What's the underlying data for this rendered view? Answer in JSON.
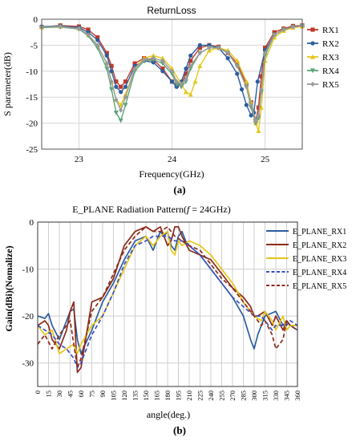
{
  "chart_data": [
    {
      "type": "line",
      "title": "ReturnLoss",
      "xlabel": "Frequency(GHz)",
      "ylabel": "S parameter(dB)",
      "xlim": [
        22.6,
        25.4
      ],
      "ylim": [
        -25,
        0
      ],
      "xticks": [
        23,
        24,
        25
      ],
      "yticks": [
        0,
        -5,
        -10,
        -15,
        -20,
        -25
      ],
      "xtick_labels": [
        "23",
        "24",
        "25"
      ],
      "ytick_labels": [
        "0",
        "-5",
        "-10",
        "-15",
        "-20",
        "-25"
      ],
      "grid": true,
      "legend_position": "right",
      "panel_label": "(a)",
      "series": [
        {
          "name": "RX1",
          "color": "#c0392b",
          "marker": "square",
          "x": [
            22.6,
            22.8,
            23.0,
            23.1,
            23.2,
            23.3,
            23.35,
            23.4,
            23.45,
            23.5,
            23.6,
            23.7,
            23.8,
            23.9,
            24.0,
            24.05,
            24.1,
            24.15,
            24.2,
            24.3,
            24.4,
            24.5,
            24.6,
            24.7,
            24.8,
            24.85,
            24.9,
            24.93,
            24.96,
            25.0,
            25.1,
            25.2,
            25.3,
            25.4
          ],
          "y": [
            -1.5,
            -1.2,
            -1.4,
            -2.0,
            -3.5,
            -6.5,
            -9.0,
            -12.0,
            -13.0,
            -12.0,
            -8.5,
            -7.5,
            -7.8,
            -9.5,
            -12.0,
            -12.8,
            -12.5,
            -10.5,
            -8.0,
            -5.5,
            -5.0,
            -5.3,
            -6.5,
            -8.5,
            -12.5,
            -16.0,
            -19.5,
            -17.0,
            -11.0,
            -5.5,
            -2.5,
            -1.8,
            -1.3,
            -1.2
          ]
        },
        {
          "name": "RX2",
          "color": "#2e5d9e",
          "marker": "circle",
          "x": [
            22.6,
            22.8,
            23.0,
            23.1,
            23.2,
            23.3,
            23.35,
            23.4,
            23.45,
            23.5,
            23.6,
            23.7,
            23.8,
            23.9,
            24.0,
            24.05,
            24.1,
            24.15,
            24.2,
            24.3,
            24.4,
            24.5,
            24.6,
            24.7,
            24.75,
            24.8,
            24.85,
            24.88,
            24.92,
            25.0,
            25.1,
            25.2,
            25.3,
            25.4
          ],
          "y": [
            -1.4,
            -1.3,
            -1.6,
            -2.5,
            -4.0,
            -7.0,
            -10.0,
            -13.0,
            -14.0,
            -13.0,
            -9.0,
            -8.0,
            -8.3,
            -10.0,
            -12.0,
            -13.0,
            -12.0,
            -9.5,
            -7.0,
            -5.0,
            -5.0,
            -5.5,
            -7.5,
            -10.5,
            -13.5,
            -16.5,
            -18.5,
            -18.0,
            -12.0,
            -6.0,
            -3.0,
            -2.0,
            -1.5,
            -1.3
          ]
        },
        {
          "name": "RX3",
          "color": "#e6c619",
          "marker": "triangle",
          "x": [
            22.6,
            22.8,
            23.0,
            23.1,
            23.2,
            23.3,
            23.35,
            23.4,
            23.45,
            23.5,
            23.6,
            23.7,
            23.8,
            23.9,
            24.0,
            24.1,
            24.15,
            24.2,
            24.25,
            24.3,
            24.4,
            24.5,
            24.6,
            24.7,
            24.8,
            24.85,
            24.9,
            24.93,
            24.96,
            25.0,
            25.1,
            25.2,
            25.3,
            25.4
          ],
          "y": [
            -1.5,
            -1.4,
            -1.8,
            -3.0,
            -5.0,
            -8.5,
            -12.0,
            -15.5,
            -16.5,
            -14.5,
            -9.5,
            -7.5,
            -7.0,
            -7.5,
            -9.5,
            -12.5,
            -14.0,
            -14.5,
            -12.0,
            -9.0,
            -6.0,
            -5.5,
            -6.0,
            -8.0,
            -12.0,
            -16.0,
            -20.0,
            -21.5,
            -17.0,
            -8.0,
            -3.5,
            -2.2,
            -1.6,
            -1.4
          ]
        },
        {
          "name": "RX4",
          "color": "#5aa57a",
          "marker": "triangle-down",
          "x": [
            22.6,
            22.8,
            23.0,
            23.1,
            23.2,
            23.3,
            23.35,
            23.4,
            23.45,
            23.5,
            23.6,
            23.7,
            23.8,
            23.9,
            24.0,
            24.05,
            24.1,
            24.15,
            24.2,
            24.3,
            24.4,
            24.5,
            24.6,
            24.7,
            24.8,
            24.85,
            24.9,
            24.93,
            24.96,
            25.0,
            25.1,
            25.2,
            25.3,
            25.4
          ],
          "y": [
            -1.6,
            -1.5,
            -1.9,
            -3.2,
            -5.5,
            -9.5,
            -13.5,
            -18.0,
            -19.5,
            -16.5,
            -10.0,
            -8.0,
            -7.8,
            -8.5,
            -10.5,
            -12.5,
            -13.0,
            -12.0,
            -9.5,
            -6.5,
            -5.5,
            -5.5,
            -6.5,
            -9.0,
            -13.0,
            -17.0,
            -20.0,
            -19.0,
            -14.0,
            -7.0,
            -3.0,
            -2.0,
            -1.5,
            -1.3
          ]
        },
        {
          "name": "RX5",
          "color": "#9a9a9a",
          "marker": "diamond",
          "x": [
            22.6,
            22.8,
            23.0,
            23.1,
            23.2,
            23.3,
            23.35,
            23.4,
            23.45,
            23.5,
            23.6,
            23.7,
            23.8,
            23.9,
            24.0,
            24.05,
            24.1,
            24.15,
            24.2,
            24.3,
            24.4,
            24.5,
            24.6,
            24.7,
            24.8,
            24.85,
            24.9,
            24.93,
            24.96,
            25.0,
            25.1,
            25.2,
            25.3,
            25.4
          ],
          "y": [
            -1.5,
            -1.4,
            -1.8,
            -3.0,
            -5.0,
            -8.5,
            -12.0,
            -15.5,
            -17.5,
            -15.0,
            -9.5,
            -7.8,
            -7.5,
            -8.0,
            -10.0,
            -12.0,
            -12.5,
            -11.5,
            -9.0,
            -6.5,
            -5.5,
            -5.5,
            -6.5,
            -9.0,
            -13.0,
            -16.5,
            -19.5,
            -18.5,
            -13.5,
            -6.5,
            -3.0,
            -2.0,
            -1.5,
            -1.3
          ]
        }
      ]
    },
    {
      "type": "line",
      "title": "E_PLANE Radiation Pattern(",
      "title_f": "f",
      "title_suffix": " = 24GHz)",
      "xlabel": "angle(deg.)",
      "ylabel": "Gain(dBi)(Nomalize)",
      "xlim": [
        0,
        360
      ],
      "ylim": [
        -35,
        0
      ],
      "xticks": [
        0,
        15,
        30,
        45,
        60,
        75,
        90,
        105,
        120,
        135,
        150,
        165,
        180,
        195,
        210,
        225,
        240,
        255,
        270,
        285,
        300,
        315,
        330,
        345,
        360
      ],
      "xtick_labels": [
        "0",
        "15",
        "30",
        "45",
        "60",
        "75",
        "90",
        "105",
        "120",
        "135",
        "150",
        "165",
        "180",
        "195",
        "210",
        "225",
        "240",
        "255",
        "270",
        "285",
        "300",
        "315",
        "330",
        "345",
        "360"
      ],
      "yticks": [
        0,
        -10,
        -20,
        -30
      ],
      "ytick_labels": [
        "0",
        "-10",
        "-20",
        "-30"
      ],
      "grid": true,
      "legend_position": "right",
      "panel_label": "(b)",
      "series": [
        {
          "name": "E_PLANE_RX1",
          "color": "#2e5d9e",
          "dash": "solid",
          "x": [
            0,
            10,
            15,
            20,
            30,
            40,
            45,
            50,
            55,
            60,
            75,
            90,
            105,
            120,
            135,
            150,
            160,
            165,
            170,
            175,
            180,
            185,
            190,
            195,
            200,
            205,
            210,
            225,
            240,
            255,
            270,
            285,
            295,
            300,
            305,
            315,
            330,
            340,
            345,
            350,
            360
          ],
          "y": [
            -20,
            -20.5,
            -19.5,
            -22,
            -25,
            -21,
            -19,
            -18.5,
            -25,
            -28,
            -23,
            -17,
            -13,
            -8,
            -4,
            -3,
            -6,
            -4,
            -2,
            -3,
            -2,
            -5,
            -6,
            -3,
            -2,
            -4,
            -5,
            -7,
            -10,
            -13,
            -16,
            -20,
            -25,
            -27,
            -24,
            -20,
            -19,
            -22,
            -21,
            -22,
            -23
          ]
        },
        {
          "name": "E_PLANE_RX2",
          "color": "#8b2a1a",
          "dash": "solid",
          "x": [
            0,
            10,
            15,
            20,
            30,
            40,
            45,
            50,
            55,
            60,
            75,
            90,
            105,
            120,
            135,
            150,
            160,
            170,
            175,
            180,
            185,
            190,
            195,
            200,
            210,
            225,
            240,
            255,
            270,
            285,
            295,
            300,
            305,
            315,
            325,
            330,
            340,
            345,
            350,
            360
          ],
          "y": [
            -22,
            -21,
            -22,
            -25,
            -27,
            -23,
            -19,
            -17,
            -32,
            -31,
            -17,
            -16,
            -12,
            -5,
            -2,
            -1,
            -2,
            -1,
            -3,
            -5,
            -4,
            -1,
            -1,
            -3,
            -6,
            -7,
            -8,
            -11,
            -14,
            -16,
            -18,
            -20,
            -20,
            -19,
            -22,
            -20,
            -23,
            -21,
            -22,
            -22
          ]
        },
        {
          "name": "E_PLANE_RX3",
          "color": "#e6c619",
          "dash": "solid",
          "x": [
            0,
            10,
            20,
            30,
            40,
            50,
            55,
            60,
            75,
            90,
            105,
            120,
            135,
            150,
            160,
            170,
            180,
            185,
            190,
            195,
            200,
            210,
            225,
            240,
            255,
            270,
            285,
            300,
            310,
            315,
            325,
            330,
            340,
            345,
            350,
            360
          ],
          "y": [
            -22,
            -24,
            -23,
            -28,
            -27,
            -26,
            -28,
            -26,
            -22,
            -20,
            -15,
            -10,
            -5,
            -3,
            -5,
            -3,
            -2,
            -6,
            -7,
            -4,
            -5,
            -4,
            -5,
            -7,
            -10,
            -13,
            -17,
            -20,
            -21,
            -19,
            -21,
            -23,
            -20,
            -23,
            -22,
            -22
          ]
        },
        {
          "name": "E_PLANE_RX4",
          "color": "#3a4fc6",
          "dash": "dashed",
          "x": [
            0,
            10,
            20,
            30,
            40,
            50,
            55,
            60,
            75,
            90,
            105,
            120,
            135,
            150,
            160,
            170,
            180,
            190,
            200,
            210,
            225,
            240,
            255,
            270,
            285,
            300,
            310,
            315,
            325,
            330,
            340,
            345,
            350,
            360
          ],
          "y": [
            -22,
            -23,
            -24,
            -26,
            -27,
            -29,
            -31,
            -30,
            -24,
            -20,
            -15,
            -9,
            -5,
            -4,
            -3,
            -3,
            -3,
            -4,
            -4,
            -5,
            -7,
            -10,
            -13,
            -16,
            -18,
            -20,
            -20,
            -21,
            -23,
            -22,
            -22,
            -22,
            -21,
            -22
          ]
        },
        {
          "name": "E_PLANE_RX5",
          "color": "#8b2a1a",
          "dash": "dashed",
          "x": [
            0,
            5,
            10,
            20,
            30,
            40,
            45,
            55,
            60,
            75,
            90,
            105,
            120,
            135,
            150,
            160,
            170,
            180,
            190,
            200,
            210,
            225,
            240,
            255,
            270,
            285,
            300,
            310,
            315,
            325,
            330,
            340,
            345,
            350,
            360
          ],
          "y": [
            -26,
            -25,
            -24,
            -27,
            -24,
            -22,
            -21,
            -31,
            -29,
            -19,
            -16,
            -11,
            -6,
            -3,
            -1,
            -2,
            -2,
            -1,
            -3,
            -4,
            -5,
            -6,
            -9,
            -12,
            -14,
            -17,
            -20,
            -22,
            -21,
            -24,
            -27,
            -25,
            -21,
            -22,
            -23
          ]
        }
      ]
    }
  ]
}
